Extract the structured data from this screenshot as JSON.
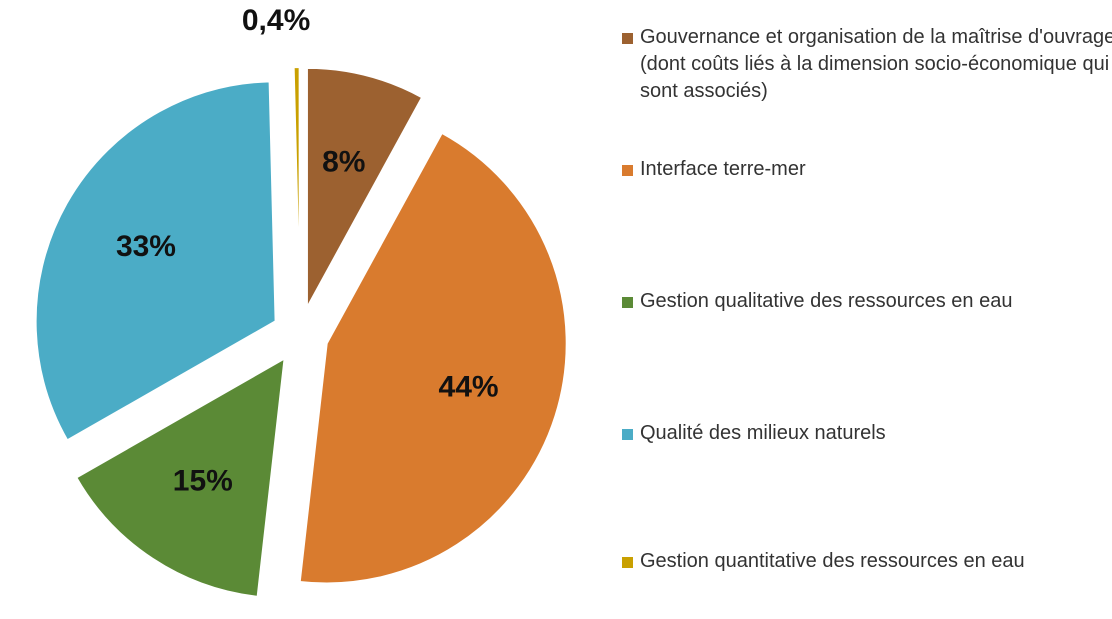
{
  "chart_data": {
    "type": "pie",
    "categories": [
      "Gouvernance et organisation de la maîtrise d'ouvrage (dont coûts liés à la dimension socio-économique qui sont associés)",
      "Interface terre-mer",
      "Gestion qualitative des ressources en eau",
      "Qualité des milieux naturels",
      "Gestion quantitative des ressources en eau"
    ],
    "values": [
      8,
      44,
      15,
      33,
      0.4
    ],
    "value_labels": [
      "8%",
      "44%",
      "15%",
      "33%",
      "0,4%"
    ],
    "colors": [
      "#9c6130",
      "#d97b2e",
      "#5b8a36",
      "#4bacc6",
      "#c9a000"
    ],
    "legend": "right"
  }
}
